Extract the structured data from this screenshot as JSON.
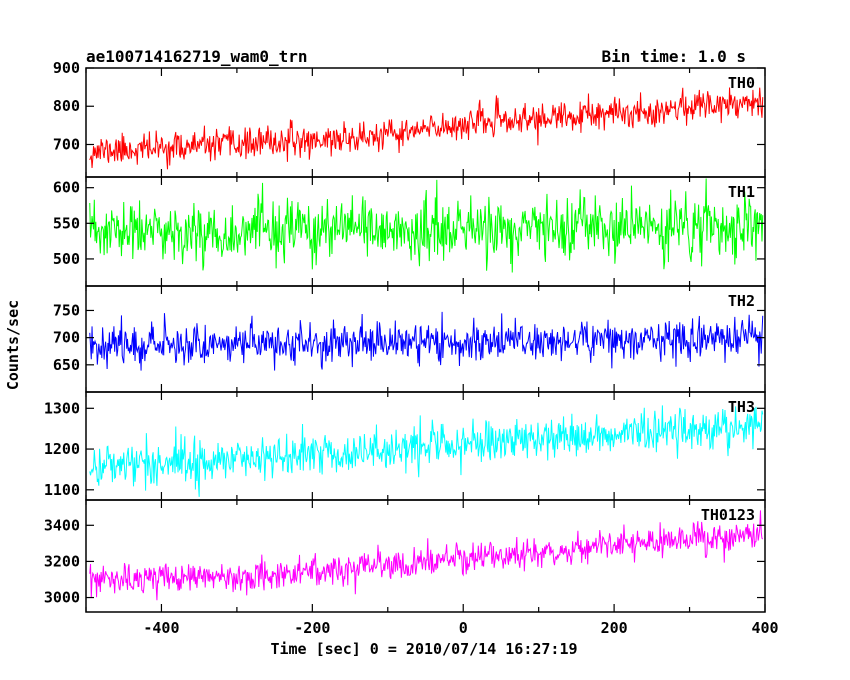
{
  "header": {
    "left": "ae100714162719_wam0_trn",
    "right": "Bin time: 1.0 s"
  },
  "chart_data": {
    "type": "line",
    "title": "ae100714162719_wam0_trn",
    "xlabel": "Time [sec] 0 = 2010/07/14 16:27:19",
    "ylabel": "Counts/sec",
    "xlim": [
      -500,
      400
    ],
    "xticks": [
      -400,
      -200,
      0,
      200,
      400
    ],
    "x_start": -495,
    "x_end": 397,
    "x_step": 1,
    "series": [
      {
        "name": "TH0",
        "color": "#ff0000",
        "ylim": [
          615,
          900
        ],
        "yticks": [
          700,
          800,
          900
        ],
        "trend": [
          [
            -495,
            682
          ],
          [
            -300,
            700
          ],
          [
            -100,
            722
          ],
          [
            0,
            755
          ],
          [
            200,
            778
          ],
          [
            300,
            800
          ],
          [
            397,
            818
          ]
        ],
        "noise": 36,
        "seed": 11
      },
      {
        "name": "TH1",
        "color": "#00ff00",
        "ylim": [
          462,
          615
        ],
        "yticks": [
          500,
          550,
          600
        ],
        "trend": [
          [
            -495,
            537
          ],
          [
            -300,
            538
          ],
          [
            0,
            540
          ],
          [
            200,
            543
          ],
          [
            397,
            544
          ]
        ],
        "noise": 38,
        "seed": 23
      },
      {
        "name": "TH2",
        "color": "#0000ff",
        "ylim": [
          600,
          795
        ],
        "yticks": [
          650,
          700,
          750
        ],
        "trend": [
          [
            -495,
            688
          ],
          [
            -200,
            690
          ],
          [
            0,
            692
          ],
          [
            200,
            696
          ],
          [
            397,
            700
          ]
        ],
        "noise": 33,
        "seed": 37
      },
      {
        "name": "TH3",
        "color": "#00ffff",
        "ylim": [
          1075,
          1340
        ],
        "yticks": [
          1100,
          1200,
          1300
        ],
        "trend": [
          [
            -495,
            1160
          ],
          [
            -300,
            1175
          ],
          [
            -100,
            1200
          ],
          [
            100,
            1225
          ],
          [
            300,
            1250
          ],
          [
            397,
            1262
          ]
        ],
        "noise": 48,
        "seed": 41
      },
      {
        "name": "TH0123",
        "color": "#ff00ff",
        "ylim": [
          2920,
          3540
        ],
        "yticks": [
          3000,
          3200,
          3400
        ],
        "trend": [
          [
            -495,
            3090
          ],
          [
            -300,
            3120
          ],
          [
            -100,
            3170
          ],
          [
            0,
            3215
          ],
          [
            100,
            3250
          ],
          [
            300,
            3320
          ],
          [
            397,
            3350
          ]
        ],
        "noise": 75,
        "seed": 53
      }
    ]
  }
}
